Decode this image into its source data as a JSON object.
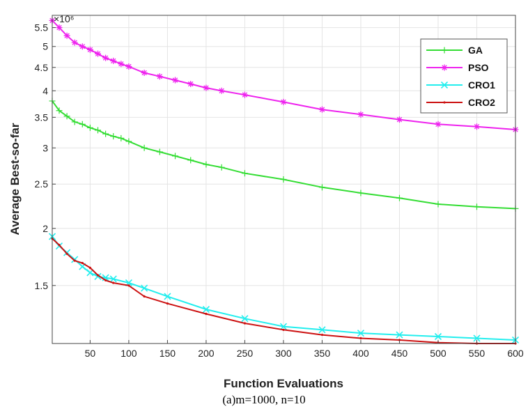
{
  "caption": "(a)m=1000, n=10",
  "chart_data": {
    "type": "line",
    "xlabel": "Function Evaluations",
    "ylabel": "Average Best-so-far",
    "y_exponent_label": "×10⁶",
    "y_scale": "log",
    "xlim": [
      1,
      600
    ],
    "ylim": [
      1.12,
      5.85
    ],
    "x_ticks": [
      50,
      100,
      150,
      200,
      250,
      300,
      350,
      400,
      450,
      500,
      550,
      600
    ],
    "y_ticks": [
      1.5,
      2,
      2.5,
      3,
      3.5,
      4,
      4.5,
      5,
      5.5
    ],
    "grid": true,
    "legend_position": "top-right",
    "series": [
      {
        "name": "GA",
        "color": "#33dd33",
        "marker": "+",
        "x": [
          1,
          10,
          20,
          30,
          40,
          50,
          60,
          70,
          80,
          90,
          100,
          120,
          140,
          160,
          180,
          200,
          220,
          250,
          300,
          350,
          400,
          450,
          500,
          550,
          600
        ],
        "y": [
          3.8,
          3.62,
          3.52,
          3.42,
          3.38,
          3.32,
          3.28,
          3.22,
          3.18,
          3.15,
          3.1,
          3.0,
          2.94,
          2.88,
          2.82,
          2.76,
          2.72,
          2.64,
          2.56,
          2.46,
          2.39,
          2.33,
          2.26,
          2.23,
          2.21
        ]
      },
      {
        "name": "PSO",
        "color": "#ee22ee",
        "marker": "*",
        "x": [
          1,
          10,
          20,
          30,
          40,
          50,
          60,
          70,
          80,
          90,
          100,
          120,
          140,
          160,
          180,
          200,
          220,
          250,
          300,
          350,
          400,
          450,
          500,
          550,
          600
        ],
        "y": [
          5.7,
          5.5,
          5.28,
          5.1,
          5.0,
          4.92,
          4.82,
          4.72,
          4.65,
          4.58,
          4.52,
          4.38,
          4.3,
          4.22,
          4.14,
          4.06,
          4.0,
          3.92,
          3.78,
          3.64,
          3.55,
          3.46,
          3.38,
          3.34,
          3.29
        ]
      },
      {
        "name": "CRO1",
        "color": "#22eeee",
        "marker": "x",
        "x": [
          1,
          10,
          20,
          30,
          40,
          50,
          60,
          70,
          80,
          100,
          120,
          150,
          200,
          250,
          300,
          350,
          400,
          450,
          500,
          550,
          600
        ],
        "y": [
          1.92,
          1.83,
          1.77,
          1.71,
          1.65,
          1.6,
          1.57,
          1.56,
          1.55,
          1.52,
          1.48,
          1.42,
          1.33,
          1.27,
          1.22,
          1.2,
          1.18,
          1.17,
          1.16,
          1.15,
          1.14
        ]
      },
      {
        "name": "CRO2",
        "color": "#cc1111",
        "marker": ".",
        "x": [
          1,
          10,
          20,
          30,
          40,
          50,
          60,
          70,
          80,
          100,
          120,
          150,
          200,
          250,
          300,
          350,
          400,
          450,
          500,
          550,
          600
        ],
        "y": [
          1.9,
          1.84,
          1.76,
          1.7,
          1.68,
          1.64,
          1.58,
          1.54,
          1.52,
          1.5,
          1.42,
          1.37,
          1.3,
          1.24,
          1.2,
          1.17,
          1.15,
          1.14,
          1.125,
          1.12,
          1.12
        ]
      }
    ]
  }
}
